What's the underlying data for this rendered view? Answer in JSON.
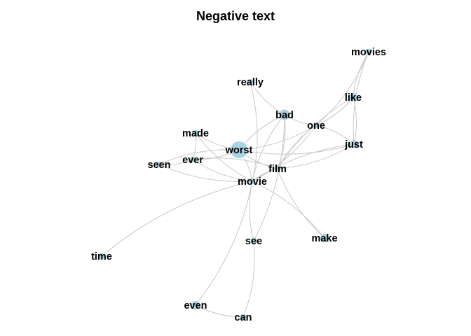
{
  "title": "Negative text",
  "colors": {
    "edge": "#c8c8c8",
    "node": "#a8d3e3",
    "label": "#000000",
    "background": "#ffffff"
  },
  "nodes": [
    {
      "id": "movies",
      "label": "movies",
      "weight": 1
    },
    {
      "id": "really",
      "label": "really",
      "weight": 1
    },
    {
      "id": "like",
      "label": "like",
      "weight": 2
    },
    {
      "id": "bad",
      "label": "bad",
      "weight": 3
    },
    {
      "id": "one",
      "label": "one",
      "weight": 1
    },
    {
      "id": "made",
      "label": "made",
      "weight": 1
    },
    {
      "id": "just",
      "label": "just",
      "weight": 2
    },
    {
      "id": "worst",
      "label": "worst",
      "weight": 6
    },
    {
      "id": "ever",
      "label": "ever",
      "weight": 1
    },
    {
      "id": "seen",
      "label": "seen",
      "weight": 1
    },
    {
      "id": "film",
      "label": "film",
      "weight": 1
    },
    {
      "id": "movie",
      "label": "movie",
      "weight": 1
    },
    {
      "id": "see",
      "label": "see",
      "weight": 1
    },
    {
      "id": "make",
      "label": "make",
      "weight": 2
    },
    {
      "id": "time",
      "label": "time",
      "weight": 1
    },
    {
      "id": "even",
      "label": "even",
      "weight": 2
    },
    {
      "id": "can",
      "label": "can",
      "weight": 1
    }
  ],
  "edges": [
    [
      "movies",
      "like"
    ],
    [
      "movies",
      "one"
    ],
    [
      "movies",
      "just"
    ],
    [
      "like",
      "just"
    ],
    [
      "like",
      "film"
    ],
    [
      "like",
      "one"
    ],
    [
      "just",
      "one"
    ],
    [
      "just",
      "film"
    ],
    [
      "just",
      "movie"
    ],
    [
      "just",
      "worst"
    ],
    [
      "really",
      "bad"
    ],
    [
      "really",
      "movie"
    ],
    [
      "bad",
      "movie"
    ],
    [
      "bad",
      "film"
    ],
    [
      "bad",
      "one"
    ],
    [
      "bad",
      "see"
    ],
    [
      "bad",
      "worst"
    ],
    [
      "one",
      "worst"
    ],
    [
      "one",
      "film"
    ],
    [
      "one",
      "movie"
    ],
    [
      "made",
      "worst"
    ],
    [
      "made",
      "ever"
    ],
    [
      "made",
      "movie"
    ],
    [
      "worst",
      "ever"
    ],
    [
      "worst",
      "seen"
    ],
    [
      "worst",
      "movie"
    ],
    [
      "worst",
      "film"
    ],
    [
      "ever",
      "seen"
    ],
    [
      "ever",
      "movie"
    ],
    [
      "ever",
      "film"
    ],
    [
      "seen",
      "movie"
    ],
    [
      "movie",
      "film"
    ],
    [
      "movie",
      "see"
    ],
    [
      "movie",
      "make"
    ],
    [
      "movie",
      "time"
    ],
    [
      "movie",
      "even"
    ],
    [
      "film",
      "make"
    ],
    [
      "see",
      "can"
    ],
    [
      "even",
      "can"
    ]
  ]
}
